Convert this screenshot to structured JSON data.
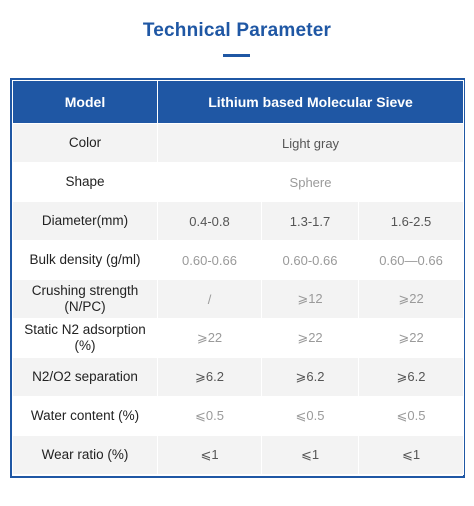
{
  "page": {
    "title": "Technical Parameter"
  },
  "table": {
    "header": {
      "model_label": "Model",
      "product_name": "Lithium based Molecular Sieve"
    },
    "rows": {
      "color": {
        "label": "Color",
        "value": "Light gray"
      },
      "shape": {
        "label": "Shape",
        "value": "Sphere"
      },
      "diameter": {
        "label": "Diameter(mm)",
        "values": [
          "0.4-0.8",
          "1.3-1.7",
          "1.6-2.5"
        ]
      },
      "bulk_density": {
        "label": "Bulk density (g/ml)",
        "values": [
          "0.60-0.66",
          "0.60-0.66",
          "0.60—0.66"
        ]
      },
      "crushing_strength": {
        "label": "Crushing strength (N/PC)",
        "values": [
          "/",
          "⩾12",
          "⩾22"
        ]
      },
      "n2_adsorption": {
        "label": "Static N2 adsorption (%)",
        "values": [
          "⩾22",
          "⩾22",
          "⩾22"
        ]
      },
      "n2_o2_separation": {
        "label": "N2/O2 separation",
        "values": [
          "⩾6.2",
          "⩾6.2",
          "⩾6.2"
        ]
      },
      "water_content": {
        "label": "Water content (%)",
        "values": [
          "⩽0.5",
          "⩽0.5",
          "⩽0.5"
        ]
      },
      "wear_ratio": {
        "label": "Wear ratio (%)",
        "values": [
          "⩽1",
          "⩽1",
          "⩽1"
        ]
      }
    }
  },
  "colors": {
    "accent": "#1f57a4",
    "row_shade": "#f3f3f3"
  }
}
